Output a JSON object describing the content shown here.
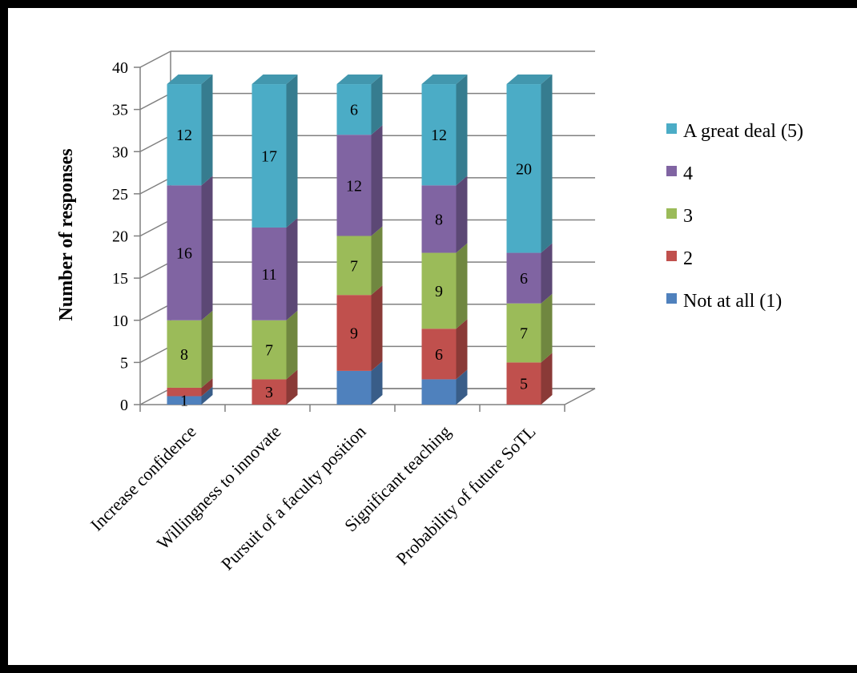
{
  "chart_data": {
    "type": "bar",
    "stacked": true,
    "style": "3d",
    "categories": [
      "Increase confidence",
      "Willingness to innovate",
      "Pursuit of a faculty position",
      "Significant teaching",
      "Probability of future SoTL"
    ],
    "series": [
      {
        "name": "Not at all (1)",
        "color": "#4f81bd",
        "values": [
          1,
          0,
          4,
          3,
          0
        ],
        "labels": [
          "1",
          "",
          "",
          "",
          ""
        ]
      },
      {
        "name": "2",
        "color": "#c0504d",
        "values": [
          1,
          3,
          9,
          6,
          5
        ],
        "labels": [
          "",
          "3",
          "9",
          "6",
          "5"
        ]
      },
      {
        "name": "3",
        "color": "#9bbb59",
        "values": [
          8,
          7,
          7,
          9,
          7
        ],
        "labels": [
          "8",
          "7",
          "7",
          "9",
          "7"
        ]
      },
      {
        "name": "4",
        "color": "#8064a2",
        "values": [
          16,
          11,
          12,
          8,
          6
        ],
        "labels": [
          "16",
          "11",
          "12",
          "8",
          "6"
        ]
      },
      {
        "name": "A great deal (5)",
        "color": "#4bacc6",
        "values": [
          12,
          17,
          6,
          12,
          20
        ],
        "labels": [
          "12",
          "17",
          "6",
          "12",
          "20"
        ]
      }
    ],
    "legend_order": [
      "A great deal (5)",
      "4",
      "3",
      "2",
      "Not at all (1)"
    ],
    "ylabel": "Number of responses",
    "xlabel": "",
    "ylim": [
      0,
      40
    ],
    "yticks": [
      0,
      5,
      10,
      15,
      20,
      25,
      30,
      35,
      40
    ],
    "grid": true,
    "legend_position": "right"
  }
}
